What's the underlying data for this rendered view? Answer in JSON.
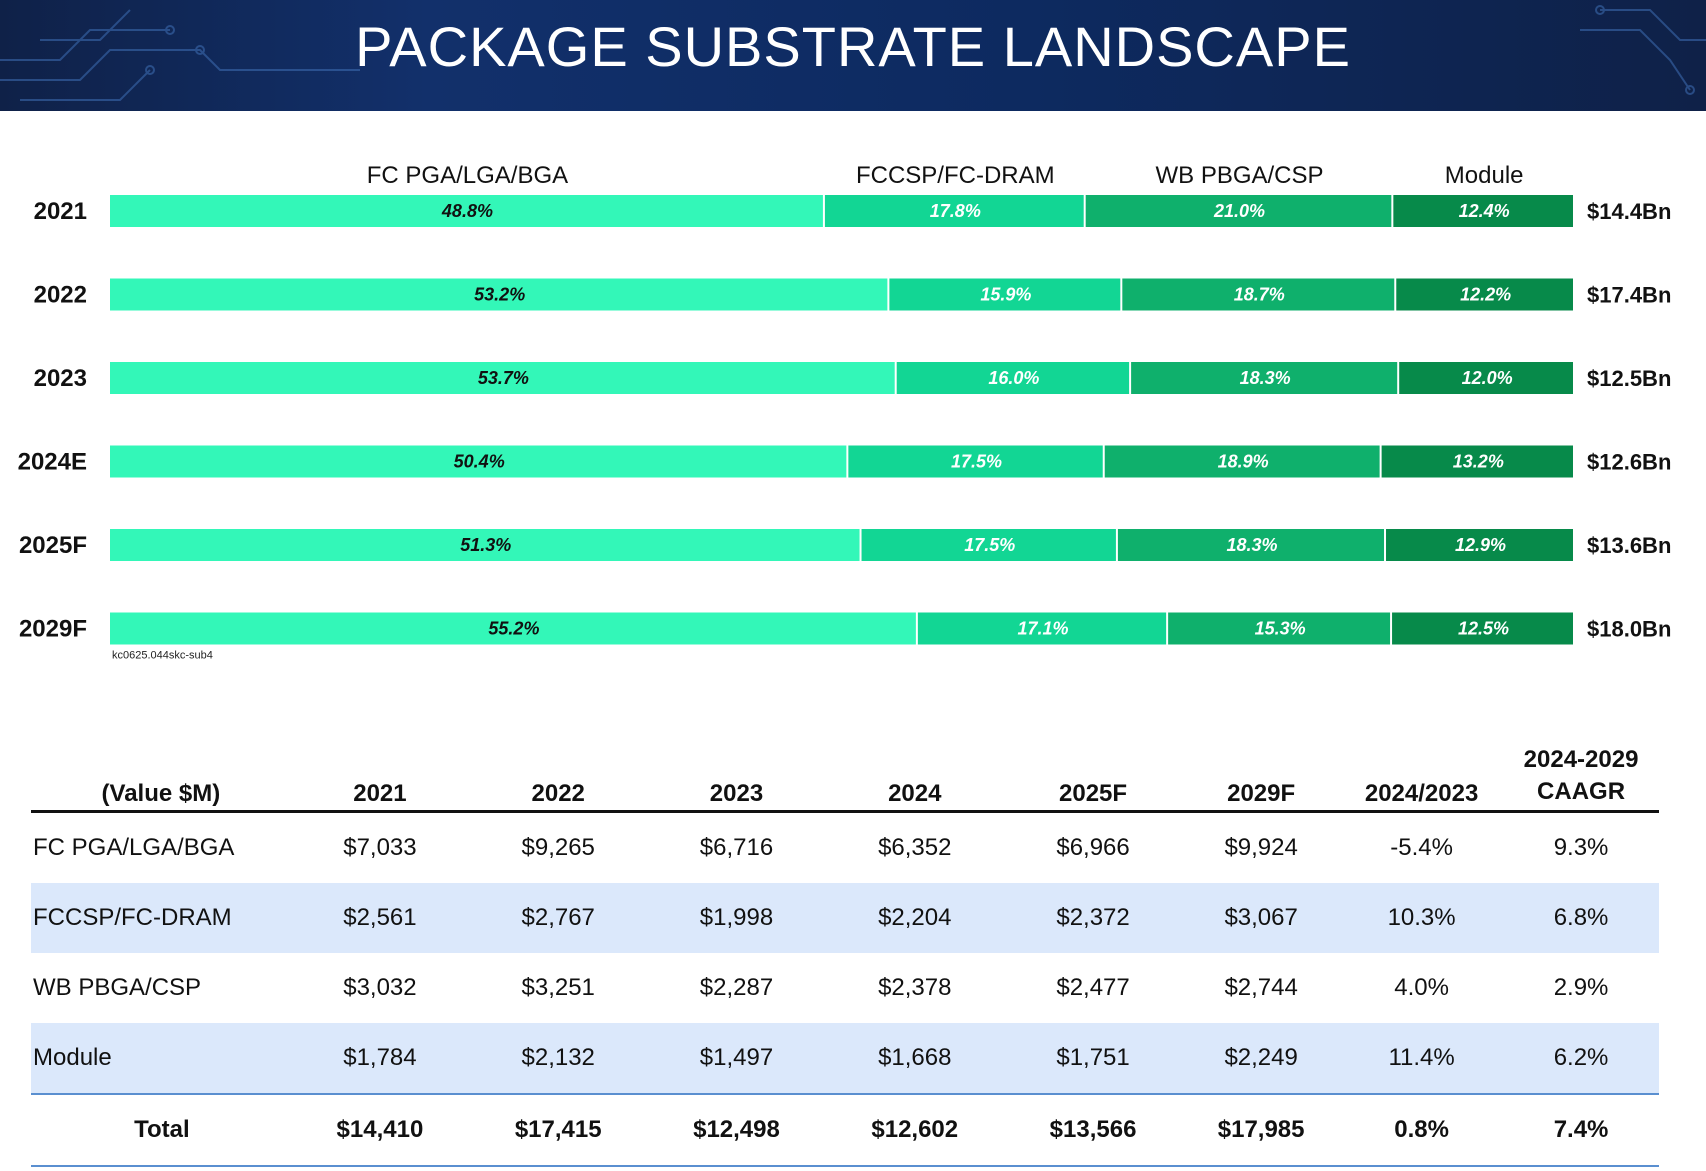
{
  "header": {
    "title": "PACKAGE SUBSTRATE LANDSCAPE"
  },
  "colors": {
    "seg1": "#33f7b8",
    "seg2": "#12d694",
    "seg3": "#0fb06c",
    "seg4": "#078a4a",
    "header_bg": "#12306b"
  },
  "chart_data": {
    "type": "bar",
    "orientation": "horizontal",
    "stacked": "100%",
    "categories": [
      "2021",
      "2022",
      "2023",
      "2024E",
      "2025F",
      "2029F"
    ],
    "series": [
      {
        "name": "FC PGA/LGA/BGA",
        "values": [
          48.8,
          53.2,
          53.7,
          50.4,
          51.3,
          55.2
        ],
        "labels": [
          "48.8%",
          "53.2%",
          "53.7%",
          "50.4%",
          "51.3%",
          "55.2%"
        ]
      },
      {
        "name": "FCCSP/FC-DRAM",
        "values": [
          17.8,
          15.9,
          16.0,
          17.5,
          17.5,
          17.1
        ],
        "labels": [
          "17.8%",
          "15.9%",
          "16.0%",
          "17.5%",
          "17.5%",
          "17.1%"
        ]
      },
      {
        "name": "WB PBGA/CSP",
        "values": [
          21.0,
          18.7,
          18.3,
          18.9,
          18.3,
          15.3
        ],
        "labels": [
          "21.0%",
          "18.7%",
          "18.3%",
          "18.9%",
          "18.3%",
          "15.3%"
        ]
      },
      {
        "name": "Module",
        "values": [
          12.4,
          12.2,
          12.0,
          13.2,
          12.9,
          12.5
        ],
        "labels": [
          "12.4%",
          "12.2%",
          "12.0%",
          "13.2%",
          "12.9%",
          "12.5%"
        ]
      }
    ],
    "totals": [
      "$14.4Bn",
      "$17.4Bn",
      "$12.5Bn",
      "$12.6Bn",
      "$13.6Bn",
      "$18.0Bn"
    ],
    "note": "kc0625.044skc-sub4",
    "xlim": [
      0,
      100
    ],
    "grid": false,
    "legend": "top"
  },
  "table": {
    "headers": [
      "(Value $M)",
      "2021",
      "2022",
      "2023",
      "2024",
      "2025F",
      "2029F",
      "2024/2023",
      "2024-2029 CAAGR"
    ],
    "rows": [
      [
        "FC PGA/LGA/BGA",
        "$7,033",
        "$9,265",
        "$6,716",
        "$6,352",
        "$6,966",
        "$9,924",
        "-5.4%",
        "9.3%"
      ],
      [
        "FCCSP/FC-DRAM",
        "$2,561",
        "$2,767",
        "$1,998",
        "$2,204",
        "$2,372",
        "$3,067",
        "10.3%",
        "6.8%"
      ],
      [
        "WB PBGA/CSP",
        "$3,032",
        "$3,251",
        "$2,287",
        "$2,378",
        "$2,477",
        "$2,744",
        "4.0%",
        "2.9%"
      ],
      [
        "Module",
        "$1,784",
        "$2,132",
        "$1,497",
        "$1,668",
        "$1,751",
        "$2,249",
        "11.4%",
        "6.2%"
      ]
    ],
    "total": [
      "Total",
      "$14,410",
      "$17,415",
      "$12,498",
      "$12,602",
      "$13,566",
      "$17,985",
      "0.8%",
      "7.4%"
    ]
  }
}
